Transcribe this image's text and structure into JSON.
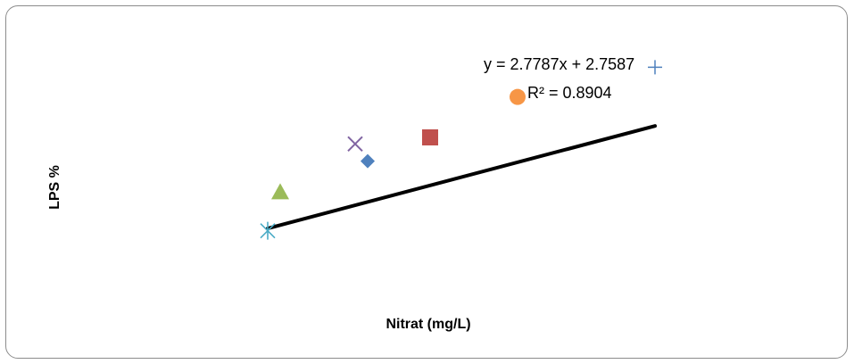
{
  "chart_data": {
    "type": "scatter",
    "title": "",
    "xlabel": "Nitrat (mg/L)",
    "ylabel": "LPS %",
    "xlim": [
      0,
      12
    ],
    "ylim": [
      0,
      45
    ],
    "grid": false,
    "legend": "none",
    "series": [
      {
        "marker": "asterisk",
        "color": "#4bacc6",
        "x": [
          3.0
        ],
        "y": [
          10.7
        ]
      },
      {
        "marker": "triangle",
        "color": "#9bbb59",
        "x": [
          3.2
        ],
        "y": [
          17.2
        ]
      },
      {
        "marker": "x",
        "color": "#8064a2",
        "x": [
          4.4
        ],
        "y": [
          25.3
        ]
      },
      {
        "marker": "diamond",
        "color": "#4f81bd",
        "x": [
          4.6
        ],
        "y": [
          22.4
        ]
      },
      {
        "marker": "square",
        "color": "#c0504d",
        "x": [
          5.6
        ],
        "y": [
          26.4
        ]
      },
      {
        "marker": "circle",
        "color": "#f79646",
        "x": [
          7.0
        ],
        "y": [
          33.2
        ]
      },
      {
        "marker": "plus",
        "color": "#4f81bd",
        "x": [
          9.2
        ],
        "y": [
          38.2
        ]
      }
    ],
    "trendline": {
      "type": "linear",
      "slope": 2.7787,
      "intercept": 2.7587,
      "x_range": [
        3.0,
        9.2
      ],
      "color": "#000000",
      "equation_label": "y = 2.7787x + 2.7587",
      "r2_label": "R² = 0.8904"
    }
  }
}
